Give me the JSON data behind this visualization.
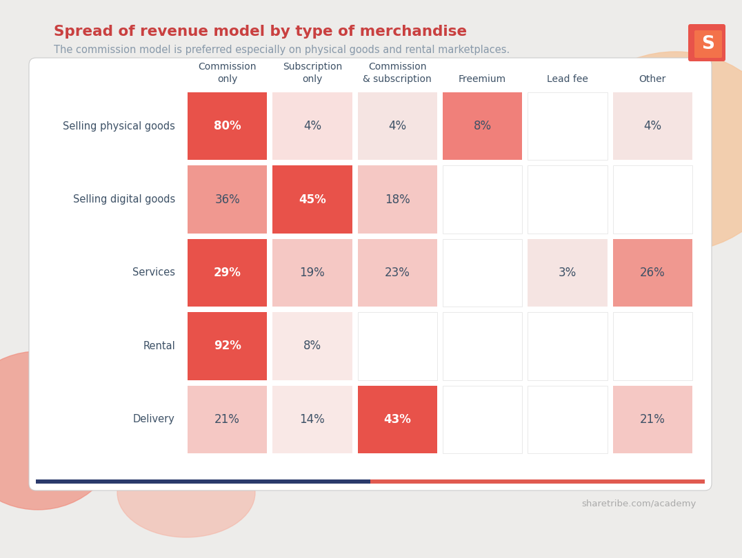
{
  "title": "Spread of revenue model by type of merchandise",
  "subtitle": "The commission model is preferred especially on physical goods and rental marketplaces.",
  "watermark": "sharetribe.com/academy",
  "columns": [
    "Commission\nonly",
    "Subscription\nonly",
    "Commission\n& subscription",
    "Freemium",
    "Lead fee",
    "Other"
  ],
  "rows": [
    "Selling physical goods",
    "Selling digital goods",
    "Services",
    "Rental",
    "Delivery"
  ],
  "values": [
    [
      80,
      4,
      4,
      8,
      0,
      4
    ],
    [
      36,
      45,
      18,
      0,
      0,
      0
    ],
    [
      29,
      19,
      23,
      0,
      3,
      26
    ],
    [
      92,
      8,
      0,
      0,
      0,
      0
    ],
    [
      21,
      14,
      43,
      0,
      0,
      21
    ]
  ],
  "cell_colors": [
    [
      "#e8524a",
      "#f9e0de",
      "#f5e4e2",
      "#f0807a",
      "",
      "#f5e4e2"
    ],
    [
      "#f09890",
      "#e8524a",
      "#f5c8c4",
      "",
      "",
      ""
    ],
    [
      "#e8524a",
      "#f5c8c4",
      "#f5c8c4",
      "",
      "#f5e4e2",
      "#f09890"
    ],
    [
      "#e8524a",
      "#f9e8e6",
      "",
      "",
      "",
      ""
    ],
    [
      "#f5c8c4",
      "#f9e8e6",
      "#e8524a",
      "",
      "",
      "#f5c8c4"
    ]
  ],
  "bold_cells": [
    [
      true,
      false,
      false,
      false,
      false,
      false
    ],
    [
      false,
      true,
      false,
      false,
      false,
      false
    ],
    [
      true,
      false,
      false,
      false,
      false,
      false
    ],
    [
      true,
      false,
      false,
      false,
      false,
      false
    ],
    [
      false,
      false,
      true,
      false,
      false,
      false
    ]
  ],
  "title_color": "#c94040",
  "subtitle_color": "#8899aa",
  "text_color_dark": "#3d5166",
  "watermark_color": "#aaaaaa",
  "outer_bg": "#edecea",
  "card_bg": "#ffffff",
  "bottom_bar_blue": "#2b3a6b",
  "bottom_bar_red": "#e05a50"
}
